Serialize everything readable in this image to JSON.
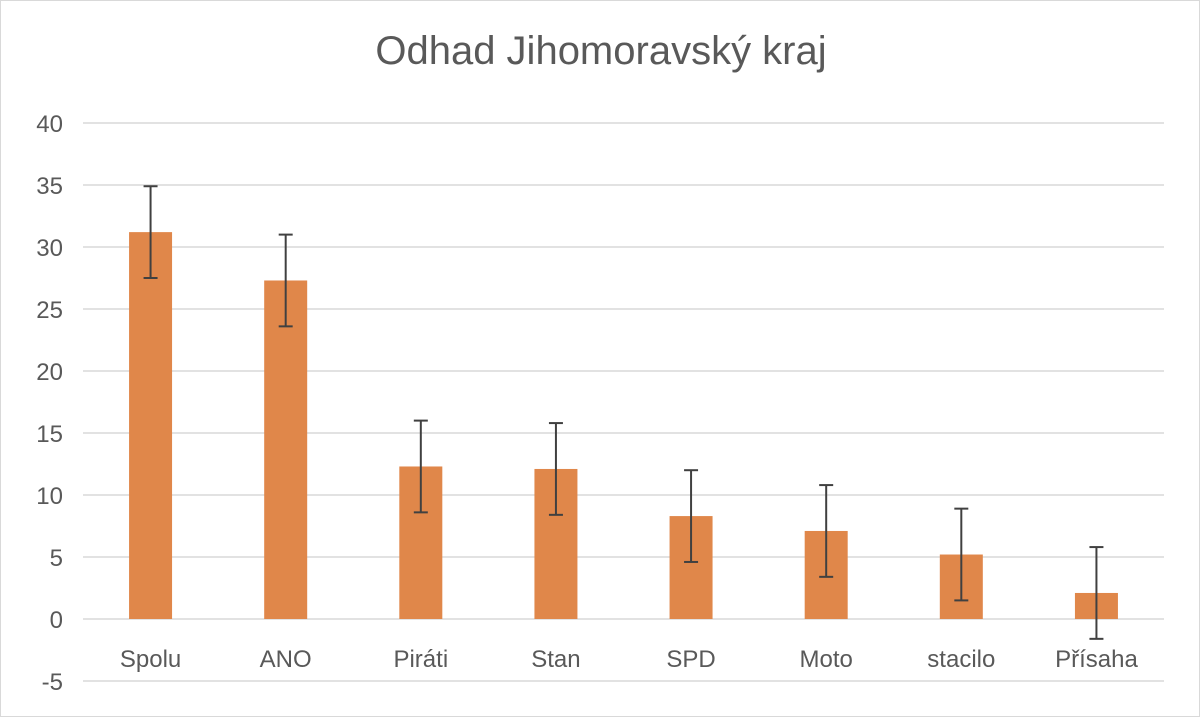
{
  "chart_data": {
    "type": "bar",
    "title": "Odhad Jihomoravský kraj",
    "categories": [
      "Spolu",
      "ANO",
      "Piráti",
      "Stan",
      "SPD",
      "Moto",
      "stacilo",
      "Přísaha"
    ],
    "values": [
      31.2,
      27.3,
      12.3,
      12.1,
      8.3,
      7.1,
      5.2,
      2.1
    ],
    "error_margin": 3.7,
    "ylim": [
      -5,
      40
    ],
    "yticks": [
      -5,
      0,
      5,
      10,
      15,
      20,
      25,
      30,
      35,
      40
    ],
    "grid": true,
    "xlabel": "",
    "ylabel": "",
    "colors": {
      "bar": "#e0874a",
      "error_bar": "#404040",
      "grid": "#d9d9d9",
      "text": "#595959"
    }
  }
}
